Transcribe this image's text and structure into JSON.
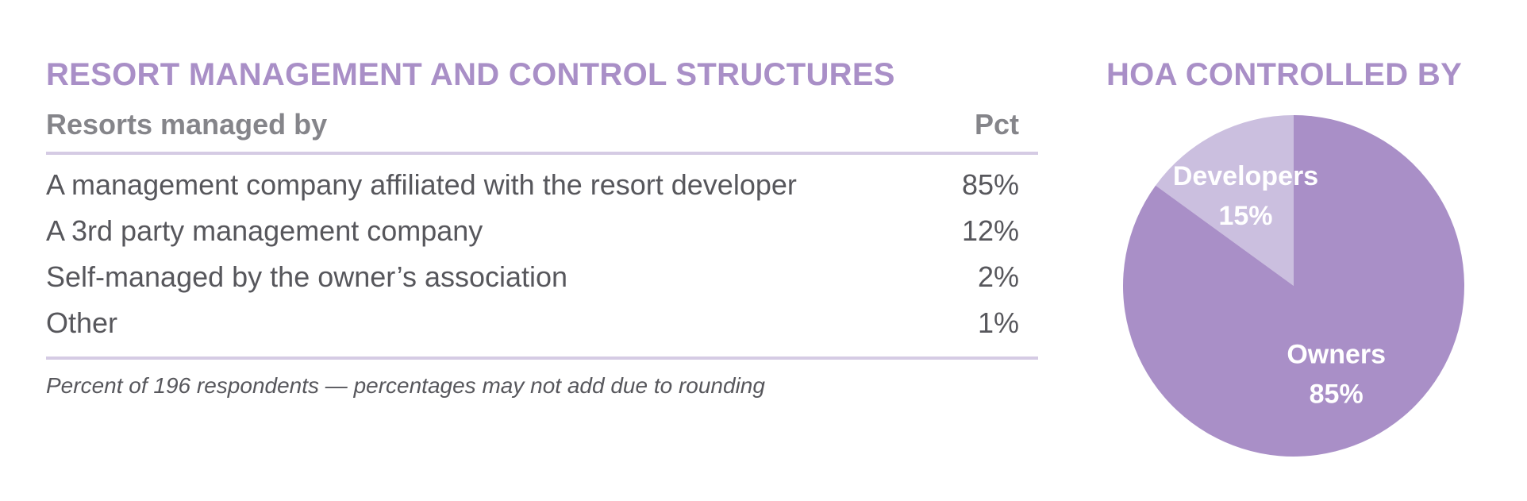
{
  "table": {
    "title": "RESORT MANAGEMENT AND CONTROL STRUCTURES",
    "header": {
      "label": "Resorts managed by",
      "pct": "Pct"
    },
    "rows": [
      {
        "label": "A management company affiliated with the resort developer",
        "pct": "85%"
      },
      {
        "label": "A 3rd party management company",
        "pct": "12%"
      },
      {
        "label": "Self-managed by the owner’s association",
        "pct": "2%"
      },
      {
        "label": "Other",
        "pct": "1%"
      }
    ],
    "footnote": "Percent of 196 respondents — percentages may not add due to rounding"
  },
  "chart_data": {
    "type": "pie",
    "title": "HOA CONTROLLED BY",
    "slices": [
      {
        "label": "Developers",
        "value": 15,
        "value_label": "15%",
        "color": "#cbbfdf"
      },
      {
        "label": "Owners",
        "value": 85,
        "value_label": "85%",
        "color": "#a98fc7"
      }
    ]
  }
}
